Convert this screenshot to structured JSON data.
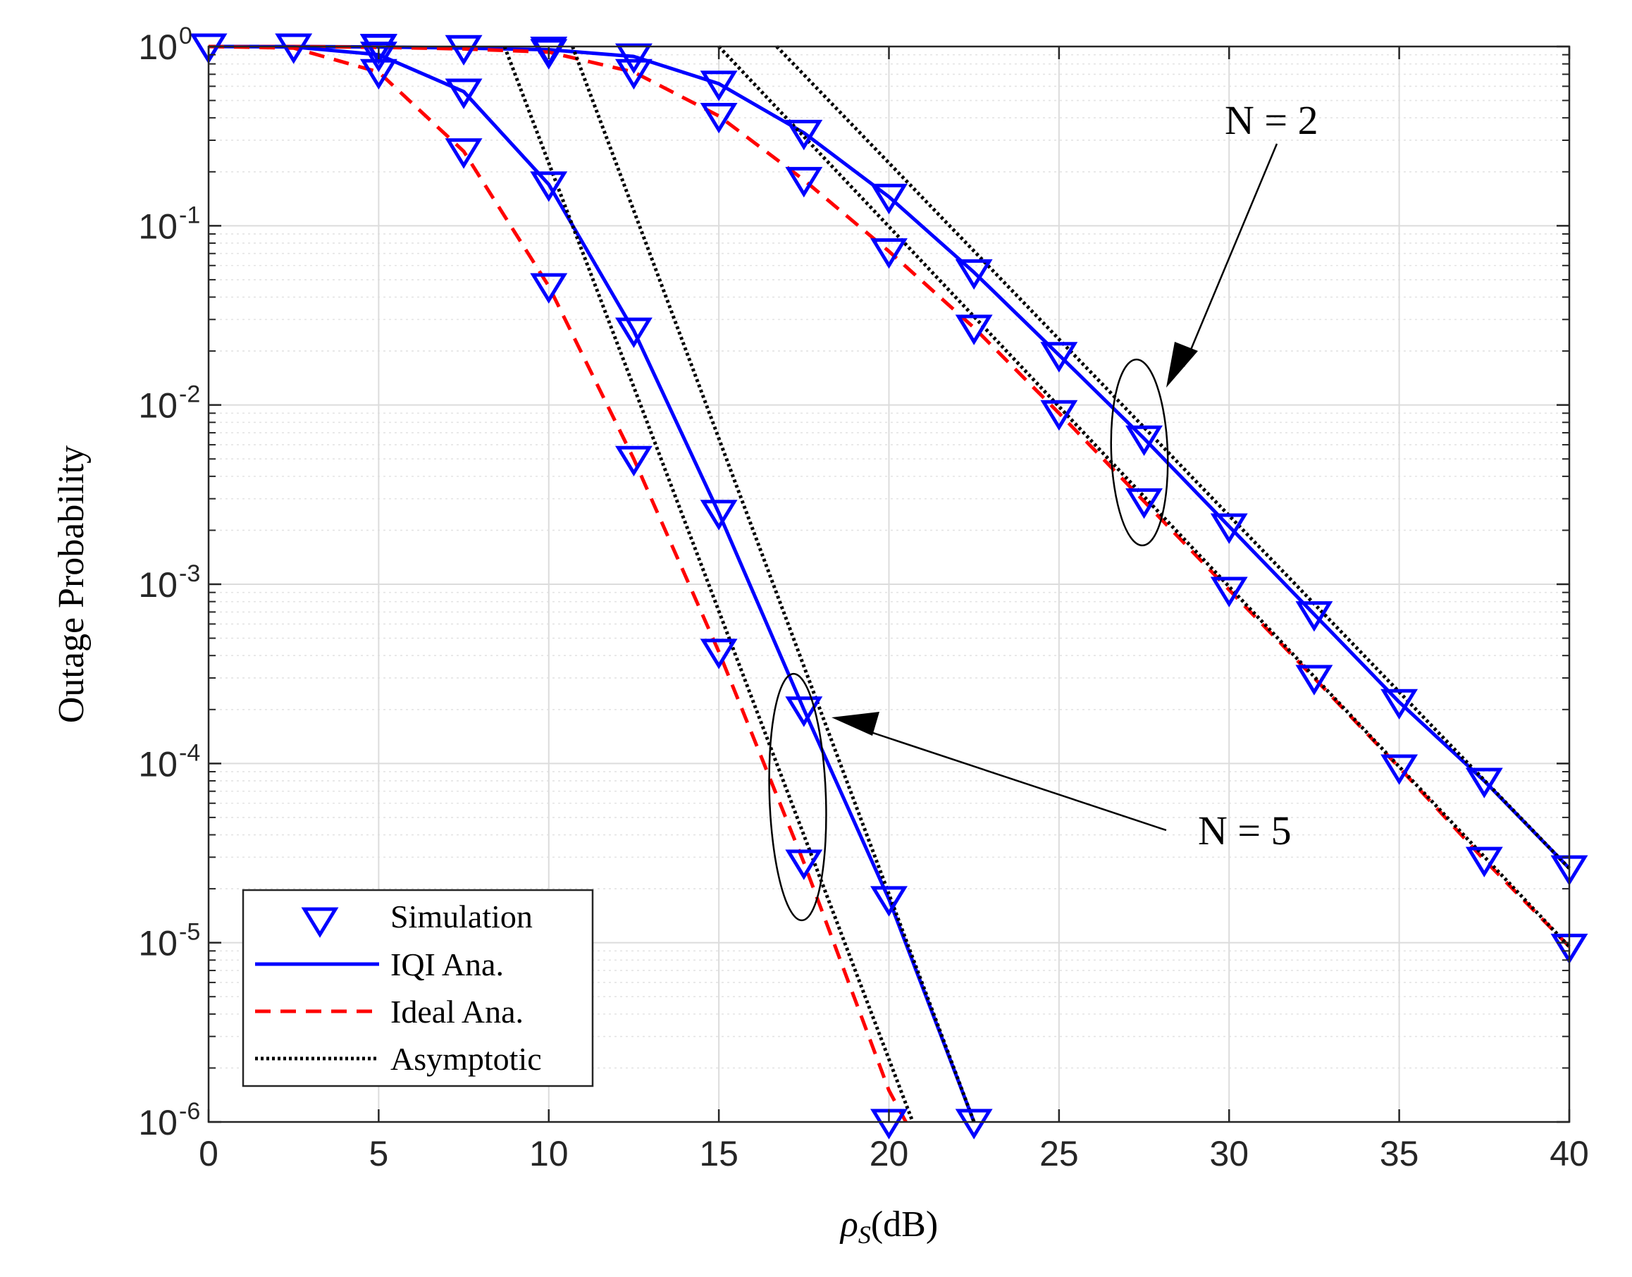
{
  "chart_data": {
    "type": "line",
    "xlabel_symbol": "ρ",
    "xlabel_subscript": "S",
    "xlabel_unit": "(dB)",
    "ylabel": "Outage Probability",
    "xlim": [
      0,
      40
    ],
    "ylim": [
      1e-06,
      1
    ],
    "yscale": "log",
    "grid": true,
    "minor_grid": true,
    "x_ticks": [
      0,
      5,
      10,
      15,
      20,
      25,
      30,
      35,
      40
    ],
    "x_tick_labels": [
      "0",
      "5",
      "10",
      "15",
      "20",
      "25",
      "30",
      "35",
      "40"
    ],
    "y_ticks": [
      {
        "value": 1,
        "base": "10",
        "exp": "0"
      },
      {
        "value": 0.1,
        "base": "10",
        "exp": "-1"
      },
      {
        "value": 0.01,
        "base": "10",
        "exp": "-2"
      },
      {
        "value": 0.001,
        "base": "10",
        "exp": "-3"
      },
      {
        "value": 0.0001,
        "base": "10",
        "exp": "-4"
      },
      {
        "value": 1e-05,
        "base": "10",
        "exp": "-5"
      },
      {
        "value": 1e-06,
        "base": "10",
        "exp": "-6"
      }
    ],
    "legend": {
      "position": "bottom-left",
      "entries": [
        {
          "label": "Simulation",
          "style": "marker"
        },
        {
          "label": "IQI Ana.",
          "style": "solid"
        },
        {
          "label": "Ideal Ana.",
          "style": "dashed"
        },
        {
          "label": "Asymptotic",
          "style": "dotted"
        }
      ]
    },
    "series": [
      {
        "name": "IQI Ana. (N = 2)",
        "style": "solid",
        "color": "#0000FF",
        "x": [
          0,
          2.5,
          5,
          7.5,
          10,
          12.5,
          15,
          17.5,
          20,
          22.5,
          25,
          27.5,
          30,
          32.5,
          35,
          37.5,
          40
        ],
        "y": [
          1,
          1,
          0.995,
          0.98,
          0.96,
          0.88,
          0.62,
          0.33,
          0.145,
          0.055,
          0.019,
          0.0065,
          0.0021,
          0.00068,
          0.00022,
          8e-05,
          2.6e-05
        ]
      },
      {
        "name": "Ideal Ana. (N = 2)",
        "style": "dashed",
        "color": "#FF0000",
        "x": [
          0,
          2.5,
          5,
          7.5,
          10,
          12.5,
          15,
          17.5,
          20,
          22.5,
          25,
          27.5,
          30,
          32.5,
          35,
          37.5,
          40
        ],
        "y": [
          1,
          1,
          0.99,
          0.97,
          0.93,
          0.72,
          0.41,
          0.18,
          0.072,
          0.027,
          0.009,
          0.0029,
          0.00093,
          0.0003,
          9.5e-05,
          2.9e-05,
          9.5e-06
        ]
      },
      {
        "name": "IQI Ana. (N = 5)",
        "style": "solid",
        "color": "#0000FF",
        "x": [
          0,
          2.5,
          5,
          7.5,
          10,
          12.5,
          15,
          17.5,
          20,
          22.5
        ],
        "y": [
          1,
          0.995,
          0.9,
          0.56,
          0.17,
          0.026,
          0.0025,
          0.0002,
          1.75e-05,
          1e-06
        ]
      },
      {
        "name": "Ideal Ana. (N = 5)",
        "style": "dashed",
        "color": "#FF0000",
        "x": [
          0,
          2.5,
          5,
          7.5,
          10,
          12.5,
          15,
          17.5,
          20,
          20.5
        ],
        "y": [
          1,
          0.98,
          0.72,
          0.26,
          0.046,
          0.005,
          0.00042,
          2.8e-05,
          1.5e-06,
          1e-06
        ]
      },
      {
        "name": "Asymptotic IQI (N = 2)",
        "style": "dotted",
        "color": "#000000",
        "x": [
          16.7,
          40
        ],
        "y": [
          1,
          2.6e-05
        ]
      },
      {
        "name": "Asymptotic Ideal (N = 2)",
        "style": "dotted",
        "color": "#000000",
        "x": [
          15,
          40
        ],
        "y": [
          1,
          9.5e-06
        ]
      },
      {
        "name": "Asymptotic IQI (N = 5)",
        "style": "dotted",
        "color": "#000000",
        "x": [
          10.7,
          22.5
        ],
        "y": [
          1,
          1e-06
        ]
      },
      {
        "name": "Asymptotic Ideal (N = 5)",
        "style": "dotted",
        "color": "#000000",
        "x": [
          8.7,
          20.7
        ],
        "y": [
          1,
          1e-06
        ]
      },
      {
        "name": "Simulation IQI (N = 2)",
        "style": "marker",
        "color": "#0000FF",
        "x": [
          0,
          2.5,
          5,
          7.5,
          10,
          12.5,
          15,
          17.5,
          20,
          22.5,
          25,
          27.5,
          30,
          32.5,
          35,
          37.5,
          40
        ],
        "y": [
          1,
          1,
          0.995,
          0.98,
          0.96,
          0.88,
          0.62,
          0.33,
          0.145,
          0.055,
          0.019,
          0.0065,
          0.0021,
          0.00068,
          0.00022,
          8e-05,
          2.6e-05
        ]
      },
      {
        "name": "Simulation Ideal (N = 2)",
        "style": "marker",
        "color": "#0000FF",
        "x": [
          5,
          10,
          12.5,
          15,
          17.5,
          20,
          22.5,
          25,
          27.5,
          30,
          32.5,
          35,
          37.5,
          40
        ],
        "y": [
          0.99,
          0.93,
          0.72,
          0.41,
          0.18,
          0.072,
          0.027,
          0.009,
          0.0029,
          0.00093,
          0.0003,
          9.5e-05,
          2.9e-05,
          9.5e-06
        ]
      },
      {
        "name": "Simulation IQI (N = 5)",
        "style": "marker",
        "color": "#0000FF",
        "x": [
          0,
          5,
          7.5,
          10,
          12.5,
          15,
          17.5,
          20,
          22.5
        ],
        "y": [
          1,
          0.9,
          0.56,
          0.17,
          0.026,
          0.0025,
          0.0002,
          1.75e-05,
          1e-06
        ]
      },
      {
        "name": "Simulation Ideal (N = 5)",
        "style": "marker",
        "color": "#0000FF",
        "x": [
          5,
          7.5,
          10,
          12.5,
          15,
          17.5,
          20
        ],
        "y": [
          0.72,
          0.26,
          0.046,
          0.005,
          0.00042,
          2.8e-05,
          1e-06
        ]
      }
    ],
    "annotations": [
      {
        "text": "N = 2",
        "points_to": {
          "x": 27.5,
          "y": 0.0045
        }
      },
      {
        "text": "N = 5",
        "points_to": {
          "x": 17.5,
          "y": 8e-05
        }
      }
    ],
    "colors": {
      "iqi": "#0000FF",
      "ideal": "#FF0000",
      "asymptotic": "#000000",
      "marker": "#0000FF",
      "grid": "#DCDCDC",
      "axis": "#262626"
    }
  }
}
